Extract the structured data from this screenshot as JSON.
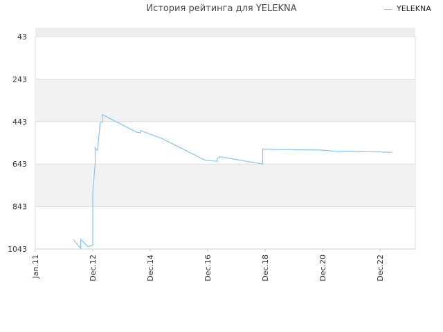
{
  "chart_data": {
    "type": "line",
    "title": "История рейтинга для YELEKNA",
    "y_reversed": true,
    "ylim": [
      1043,
      43
    ],
    "y_ticks": [
      "43",
      "243",
      "443",
      "643",
      "843",
      "1043"
    ],
    "x_ticks": [
      "Jan.11",
      "Dec.12",
      "Dec.14",
      "Dec.16",
      "Dec.18",
      "Dec.20",
      "Dec.22"
    ],
    "grid": true,
    "legend_position": "top-right",
    "colors": {
      "series": "#86c2ee",
      "band": "#f2f2f2",
      "grid": "#dddddd"
    },
    "series": [
      {
        "name": "YELEKNA",
        "x": [
          "2012-05",
          "2012-08",
          "2012-08",
          "2012-11",
          "2013-01",
          "2013-01",
          "2013-01",
          "2013-02",
          "2013-02",
          "2013-02",
          "2013-02",
          "2013-02",
          "2013-03",
          "2013-03",
          "2013-04",
          "2013-04",
          "2013-05",
          "2013-05",
          "2013-05",
          "2014-06",
          "2014-07",
          "2014-09",
          "2014-09",
          "2015-06",
          "2016-12",
          "2017-05",
          "2017-05",
          "2017-06",
          "2018-12",
          "2018-12",
          "2019-06",
          "2020-12",
          "2021-06",
          "2022-12",
          "2023-06"
        ],
        "values": [
          1000,
          1040,
          998,
          1032,
          1025,
          1023,
          780,
          640,
          603,
          590,
          562,
          570,
          578,
          577,
          460,
          448,
          445,
          408,
          410,
          485,
          492,
          496,
          485,
          523,
          625,
          630,
          618,
          608,
          643,
          572,
          575,
          577,
          582,
          586,
          588
        ]
      }
    ]
  }
}
